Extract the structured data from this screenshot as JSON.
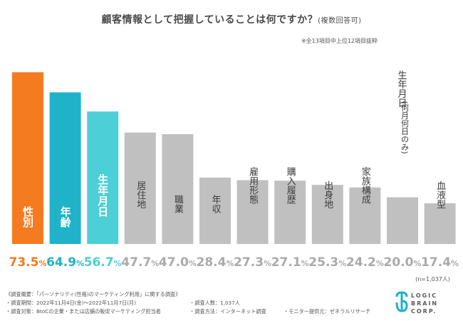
{
  "title": "顧客情報として把握していることは何ですか？",
  "title_suffix": "(複数回答可)",
  "note": "※全13項目中上位12項目抜粋",
  "n_note": "(n=1,037人)",
  "chart_data": {
    "type": "bar",
    "title": "顧客情報として把握していることは何ですか？(複数回答可)",
    "categories": [
      "性別",
      "年齢",
      "生年月日",
      "居住地",
      "職業",
      "年収",
      "雇用形態",
      "購入履歴",
      "出身地",
      "家族構成",
      "生年月日(何月何日のみ)",
      "血液型"
    ],
    "category_lines": [
      [
        "性別"
      ],
      [
        "年齢"
      ],
      [
        "生年月日"
      ],
      [
        "居住地"
      ],
      [
        "職業"
      ],
      [
        "年収"
      ],
      [
        "雇用形態"
      ],
      [
        "購入履歴"
      ],
      [
        "出身地"
      ],
      [
        "家族構成"
      ],
      [
        "生年月日",
        "(何月何日のみ)"
      ],
      [
        "血液型"
      ]
    ],
    "values": [
      73.5,
      64.9,
      56.7,
      47.7,
      47.0,
      28.4,
      27.3,
      27.1,
      25.3,
      24.2,
      20.0,
      17.4
    ],
    "value_labels": [
      "73.5%",
      "64.9%",
      "56.7%",
      "47.7%",
      "47.0%",
      "28.4%",
      "27.3%",
      "27.1%",
      "25.3%",
      "24.2%",
      "20.0%",
      "17.4%"
    ],
    "unit": "%",
    "ylim": [
      0,
      80
    ],
    "colors": [
      "#f47b20",
      "#1fb2c8",
      "#4ccfd6",
      "#c0c0c0",
      "#c0c0c0",
      "#c0c0c0",
      "#c0c0c0",
      "#c0c0c0",
      "#c0c0c0",
      "#c0c0c0",
      "#c0c0c0",
      "#c0c0c0"
    ],
    "label_colors": [
      "#f47b20",
      "#1fb2c8",
      "#4ccfd6",
      "#aaaaaa",
      "#aaaaaa",
      "#aaaaaa",
      "#aaaaaa",
      "#aaaaaa",
      "#aaaaaa",
      "#aaaaaa",
      "#aaaaaa",
      "#aaaaaa"
    ]
  },
  "footer": {
    "survey_title": "《調査概要：「パーソナリティ(性格)のマーケティング利用」に関する調査》",
    "period": "・調査期間：2022年11月4日(金)〜2022年11月7日(月)",
    "respondents": "・調査人数：1,037人",
    "target": "・調査対象：BtoCの企業・または店舗の販促マーケティング担当者",
    "method": "・調査方法：インターネット調査",
    "provider": "・モニター提供元：ゼネラルリサーチ"
  },
  "logo": {
    "line1": "LOGIC",
    "line2": "BRAIN",
    "line3": "CORP.",
    "color": "#1fb2c8"
  }
}
